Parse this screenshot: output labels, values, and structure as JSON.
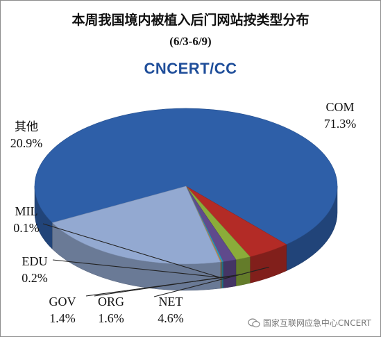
{
  "header": {
    "title": "本周我国境内被植入后门网站按类型分布",
    "subtitle": "(6/3-6/9)",
    "logo_text": "CNCERT/CC"
  },
  "watermark": {
    "text": "国家互联网应急中心CNCERT",
    "icon": "wechat-icon"
  },
  "chart_data": {
    "type": "pie",
    "title": "本周我国境内被植入后门网站按类型分布",
    "subtitle": "(6/3-6/9)",
    "style": "3d",
    "categories": [
      "COM",
      "NET",
      "ORG",
      "GOV",
      "EDU",
      "MIL",
      "其他"
    ],
    "values": [
      71.3,
      4.6,
      1.6,
      1.4,
      0.2,
      0.1,
      20.9
    ],
    "value_labels": [
      "71.3%",
      "4.6%",
      "1.6%",
      "1.4%",
      "0.2%",
      "0.1%",
      "20.9%"
    ],
    "colors": [
      "#2e5fa8",
      "#b32b26",
      "#8bac3a",
      "#5f4a8c",
      "#2e9ab8",
      "#e8862e",
      "#93a9d1"
    ],
    "legend": "none"
  }
}
